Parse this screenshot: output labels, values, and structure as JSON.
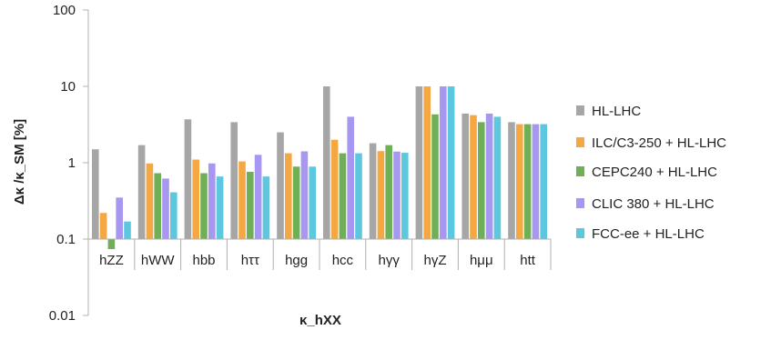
{
  "chart_data": {
    "type": "bar",
    "y_scale": "log",
    "ylim": [
      0.01,
      100
    ],
    "y_ticks": [
      "0.01",
      "0.1",
      "1",
      "10",
      "100"
    ],
    "y_tick_values": [
      0.01,
      0.1,
      1,
      10,
      100
    ],
    "ylabel": "Δκ /κ_SM [%]",
    "xlabel": "κ_hXX",
    "grid": false,
    "legend_position": "right",
    "categories": [
      "hZZ",
      "hWW",
      "hbb",
      "hττ",
      "hgg",
      "hcc",
      "hγγ",
      "hγZ",
      "hμμ",
      "htt"
    ],
    "series": [
      {
        "name": "HL-LHC",
        "color": "#a6a6a6",
        "values": [
          1.5,
          1.7,
          3.7,
          3.4,
          2.5,
          10,
          1.8,
          10,
          4.4,
          3.4
        ]
      },
      {
        "name": "ILC/C3-250 + HL-LHC",
        "color": "#f5a742",
        "values": [
          0.22,
          0.98,
          1.1,
          1.04,
          1.33,
          2.0,
          1.42,
          10,
          4.2,
          3.2
        ]
      },
      {
        "name": "CEPC240 + HL-LHC",
        "color": "#6fb057",
        "values": [
          0.074,
          0.73,
          0.73,
          0.76,
          0.89,
          1.33,
          1.7,
          4.3,
          3.4,
          3.2
        ]
      },
      {
        "name": "CLIC 380 + HL-LHC",
        "color": "#a897f0",
        "values": [
          0.35,
          0.62,
          0.98,
          1.27,
          1.41,
          4.0,
          1.4,
          10,
          4.4,
          3.2
        ]
      },
      {
        "name": "FCC-ee + HL-LHC",
        "color": "#5cc8e0",
        "values": [
          0.17,
          0.41,
          0.66,
          0.66,
          0.89,
          1.33,
          1.35,
          10,
          4.0,
          3.2
        ]
      }
    ]
  }
}
